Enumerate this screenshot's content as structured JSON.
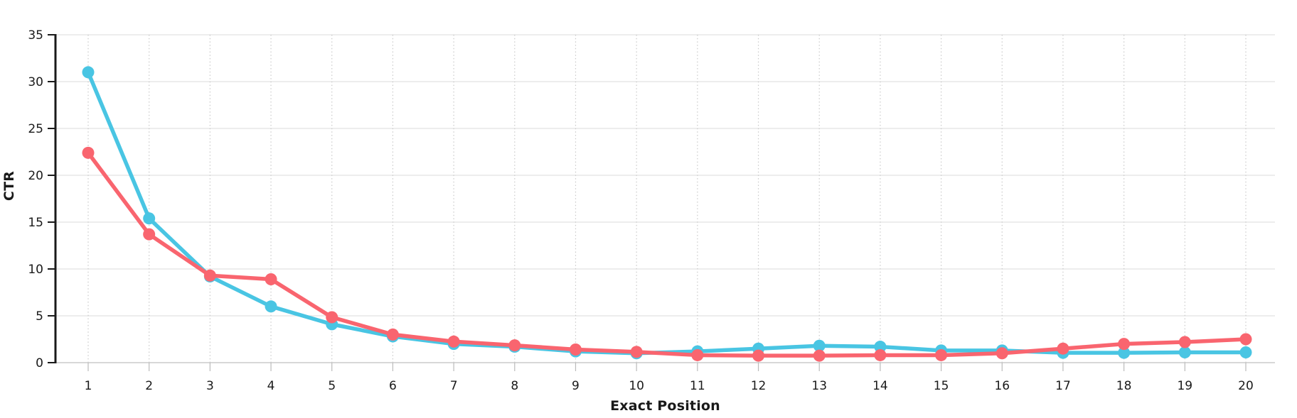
{
  "chart_data": {
    "type": "line",
    "title": "",
    "xlabel": "Exact Position",
    "ylabel": "CTR",
    "x": [
      1,
      2,
      3,
      4,
      5,
      6,
      7,
      8,
      9,
      10,
      11,
      12,
      13,
      14,
      15,
      16,
      17,
      18,
      19,
      20
    ],
    "ylim": [
      0,
      35
    ],
    "yticks": [
      0,
      5,
      10,
      15,
      20,
      25,
      30,
      35
    ],
    "grid": "horizontal-solid, vertical-dotted",
    "legend_position": "none",
    "series": [
      {
        "name": "blue",
        "color": "#49C5E3",
        "values": [
          31.0,
          15.4,
          9.2,
          6.0,
          4.1,
          2.8,
          2.0,
          1.7,
          1.2,
          1.0,
          1.2,
          1.5,
          1.8,
          1.7,
          1.3,
          1.3,
          1.05,
          1.05,
          1.1,
          1.1
        ]
      },
      {
        "name": "red",
        "color": "#F9656F",
        "values": [
          22.4,
          13.7,
          9.3,
          8.9,
          4.85,
          3.0,
          2.25,
          1.85,
          1.4,
          1.15,
          0.8,
          0.75,
          0.75,
          0.8,
          0.8,
          1.0,
          1.5,
          2.0,
          2.2,
          2.5
        ]
      }
    ],
    "colors": {
      "axis": "#1a1a1a",
      "h_gridline": "#e2e2e2",
      "baseline": "#cccccc",
      "v_gridline": "#c9c9c9",
      "x_tick": "#bbbbbb"
    }
  }
}
